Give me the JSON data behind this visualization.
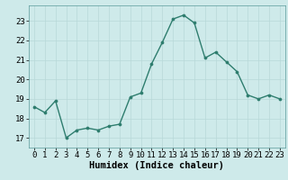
{
  "x": [
    0,
    1,
    2,
    3,
    4,
    5,
    6,
    7,
    8,
    9,
    10,
    11,
    12,
    13,
    14,
    15,
    16,
    17,
    18,
    19,
    20,
    21,
    22,
    23
  ],
  "y": [
    18.6,
    18.3,
    18.9,
    17.0,
    17.4,
    17.5,
    17.4,
    17.6,
    17.7,
    19.1,
    19.3,
    20.8,
    21.9,
    23.1,
    23.3,
    22.9,
    21.1,
    21.4,
    20.9,
    20.4,
    19.2,
    19.0,
    19.2,
    19.0
  ],
  "line_color": "#2e7d6e",
  "marker": "o",
  "marker_size": 2.2,
  "bg_color": "#ceeaea",
  "grid_color": "#b8d8d8",
  "xlabel": "Humidex (Indice chaleur)",
  "xlim": [
    -0.5,
    23.5
  ],
  "ylim": [
    16.5,
    23.8
  ],
  "yticks": [
    17,
    18,
    19,
    20,
    21,
    22,
    23
  ],
  "xticks": [
    0,
    1,
    2,
    3,
    4,
    5,
    6,
    7,
    8,
    9,
    10,
    11,
    12,
    13,
    14,
    15,
    16,
    17,
    18,
    19,
    20,
    21,
    22,
    23
  ],
  "line_width": 1.0,
  "xlabel_fontsize": 7.5,
  "tick_fontsize": 6.5
}
